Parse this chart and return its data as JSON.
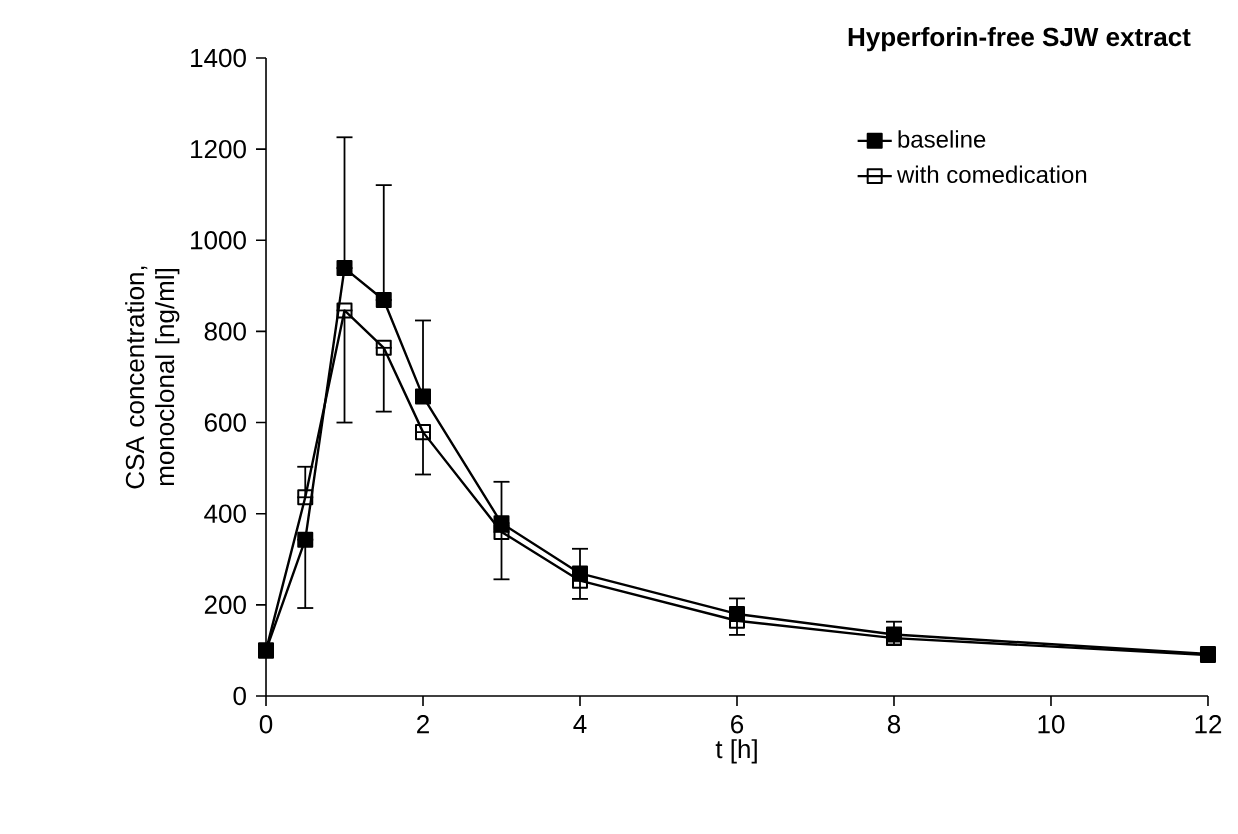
{
  "chart_data": {
    "type": "line",
    "title": "Hyperforin-free SJW extract",
    "xlabel": "t [h]",
    "ylabel": "CSA concentration, monoclonal [ng/ml]",
    "x": [
      0,
      0.5,
      1,
      1.5,
      2,
      3,
      4,
      6,
      8,
      12
    ],
    "series": [
      {
        "name": "baseline",
        "color": "#000000",
        "values": [
          100,
          343,
          939,
          869,
          657,
          379,
          269,
          180,
          135,
          92
        ],
        "errors": [
          null,
          [
            193,
            343
          ],
          [
            939,
            1226
          ],
          [
            869,
            1121
          ],
          [
            657,
            824
          ],
          [
            379,
            470
          ],
          [
            269,
            323
          ],
          [
            180,
            214
          ],
          [
            135,
            163
          ],
          null
        ]
      },
      {
        "name": "with comedication",
        "color": "#000000",
        "values": [
          100,
          436,
          846,
          764,
          579,
          360,
          253,
          165,
          127,
          90
        ],
        "errors": [
          null,
          [
            436,
            503
          ],
          [
            600,
            846
          ],
          [
            624,
            764
          ],
          [
            486,
            579
          ],
          [
            256,
            360
          ],
          [
            213,
            253
          ],
          [
            134,
            165
          ],
          [
            113,
            127
          ],
          null
        ]
      }
    ],
    "xlim": [
      0,
      12
    ],
    "ylim": [
      0,
      1400
    ],
    "xticks": [
      0,
      2,
      4,
      6,
      8,
      10,
      12
    ],
    "yticks": [
      0,
      200,
      400,
      600,
      800,
      1000,
      1200,
      1400
    ],
    "marker": "square",
    "line_style": "solid",
    "legend": "top right",
    "grid": false
  }
}
